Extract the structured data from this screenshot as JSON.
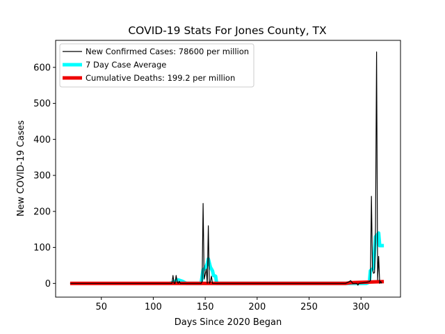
{
  "chart_data": {
    "type": "line",
    "title": "COVID-19 Stats For Jones County, TX",
    "xlabel": "Days Since 2020 Began",
    "ylabel": "New COVID-19 Cases",
    "xlim": [
      6,
      338
    ],
    "ylim": [
      -38,
      675
    ],
    "x_ticks": [
      50,
      100,
      150,
      200,
      250,
      300
    ],
    "y_ticks": [
      0,
      100,
      200,
      300,
      400,
      500,
      600
    ],
    "grid": false,
    "legend_position": "top-left",
    "series": [
      {
        "name": "New Confirmed Cases: 78600 per million",
        "color": "#000000",
        "style": "thin-line",
        "points": [
          [
            20,
            0
          ],
          [
            116,
            0
          ],
          [
            118,
            0
          ],
          [
            119,
            22
          ],
          [
            120,
            0
          ],
          [
            121,
            0
          ],
          [
            122,
            22
          ],
          [
            123,
            5
          ],
          [
            124,
            0
          ],
          [
            125,
            6
          ],
          [
            126,
            0
          ],
          [
            130,
            0
          ],
          [
            146,
            0
          ],
          [
            147,
            5
          ],
          [
            148,
            222
          ],
          [
            149,
            12
          ],
          [
            150,
            25
          ],
          [
            151,
            40
          ],
          [
            152,
            0
          ],
          [
            153,
            160
          ],
          [
            154,
            0
          ],
          [
            155,
            5
          ],
          [
            156,
            20
          ],
          [
            157,
            0
          ],
          [
            160,
            0
          ],
          [
            285,
            0
          ],
          [
            288,
            4
          ],
          [
            290,
            8
          ],
          [
            292,
            0
          ],
          [
            296,
            0
          ],
          [
            297,
            -5
          ],
          [
            298,
            0
          ],
          [
            305,
            3
          ],
          [
            308,
            5
          ],
          [
            309,
            8
          ],
          [
            310,
            242
          ],
          [
            311,
            40
          ],
          [
            312,
            28
          ],
          [
            313,
            30
          ],
          [
            314,
            160
          ],
          [
            315,
            643
          ],
          [
            316,
            10
          ],
          [
            317,
            75
          ],
          [
            318,
            0
          ],
          [
            319,
            5
          ],
          [
            320,
            0
          ]
        ]
      },
      {
        "name": "7 Day Case Average",
        "color": "#00ffff",
        "style": "thick-line",
        "points": [
          [
            116,
            0
          ],
          [
            118,
            2
          ],
          [
            120,
            4
          ],
          [
            122,
            8
          ],
          [
            124,
            10
          ],
          [
            126,
            8
          ],
          [
            128,
            6
          ],
          [
            130,
            3
          ],
          [
            132,
            0
          ],
          [
            146,
            0
          ],
          [
            147,
            20
          ],
          [
            148,
            38
          ],
          [
            150,
            42
          ],
          [
            152,
            55
          ],
          [
            153,
            68
          ],
          [
            155,
            45
          ],
          [
            157,
            35
          ],
          [
            158,
            22
          ],
          [
            160,
            20
          ],
          [
            161,
            0
          ],
          [
            305,
            0
          ],
          [
            308,
            4
          ],
          [
            309,
            35
          ],
          [
            311,
            40
          ],
          [
            312,
            42
          ],
          [
            313,
            90
          ],
          [
            314,
            130
          ],
          [
            315,
            132
          ],
          [
            317,
            140
          ],
          [
            318,
            105
          ],
          [
            322,
            105
          ]
        ]
      },
      {
        "name": "Cumulative Deaths: 199.2 per million",
        "color": "#ee0000",
        "style": "thick-line",
        "points": [
          [
            20,
            0
          ],
          [
            280,
            0
          ],
          [
            285,
            0
          ],
          [
            290,
            2
          ],
          [
            300,
            3
          ],
          [
            310,
            4
          ],
          [
            320,
            5
          ],
          [
            322,
            5
          ]
        ]
      }
    ]
  }
}
